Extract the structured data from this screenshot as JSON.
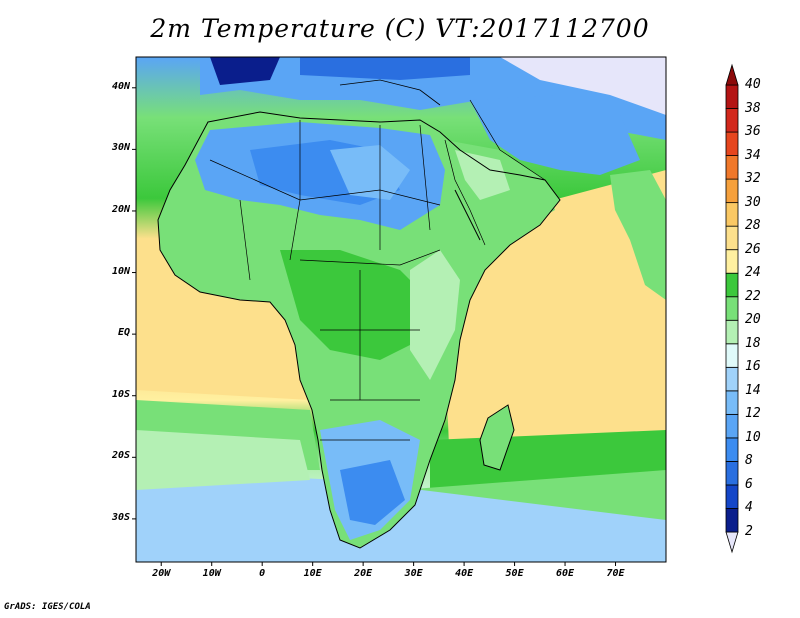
{
  "title": "2m Temperature (C) VT:2017112700",
  "credit": "GrADS: IGES/COLA",
  "map": {
    "projection": "lat-lon",
    "lon_range": [
      -25,
      80
    ],
    "lat_range": [
      -37,
      45
    ],
    "lon_ticks": [
      {
        "value": -20,
        "label": "20W"
      },
      {
        "value": -10,
        "label": "10W"
      },
      {
        "value": 0,
        "label": "0"
      },
      {
        "value": 10,
        "label": "10E"
      },
      {
        "value": 20,
        "label": "20E"
      },
      {
        "value": 30,
        "label": "30E"
      },
      {
        "value": 40,
        "label": "40E"
      },
      {
        "value": 50,
        "label": "50E"
      },
      {
        "value": 60,
        "label": "60E"
      },
      {
        "value": 70,
        "label": "70E"
      }
    ],
    "lat_ticks": [
      {
        "value": 40,
        "label": "40N"
      },
      {
        "value": 30,
        "label": "30N"
      },
      {
        "value": 20,
        "label": "20N"
      },
      {
        "value": 10,
        "label": "10N"
      },
      {
        "value": 0,
        "label": "EQ"
      },
      {
        "value": -10,
        "label": "10S"
      },
      {
        "value": -20,
        "label": "20S"
      },
      {
        "value": -30,
        "label": "30S"
      }
    ]
  },
  "colorbar": {
    "labels": [
      "2",
      "4",
      "6",
      "8",
      "10",
      "12",
      "14",
      "16",
      "18",
      "20",
      "22",
      "24",
      "26",
      "28",
      "30",
      "32",
      "34",
      "36",
      "38",
      "40"
    ],
    "colors": [
      "#e6e6fa",
      "#0a1e8c",
      "#1446c8",
      "#2a6fe0",
      "#3c8cf0",
      "#5aa5f5",
      "#78bcf8",
      "#a0d2fa",
      "#e0fafa",
      "#b4f0b4",
      "#78e078",
      "#3cc83c",
      "#fff0a0",
      "#fde08c",
      "#fac864",
      "#f5a03c",
      "#f0782a",
      "#e6461e",
      "#d2281c",
      "#b41414",
      "#8c0a0a"
    ]
  }
}
